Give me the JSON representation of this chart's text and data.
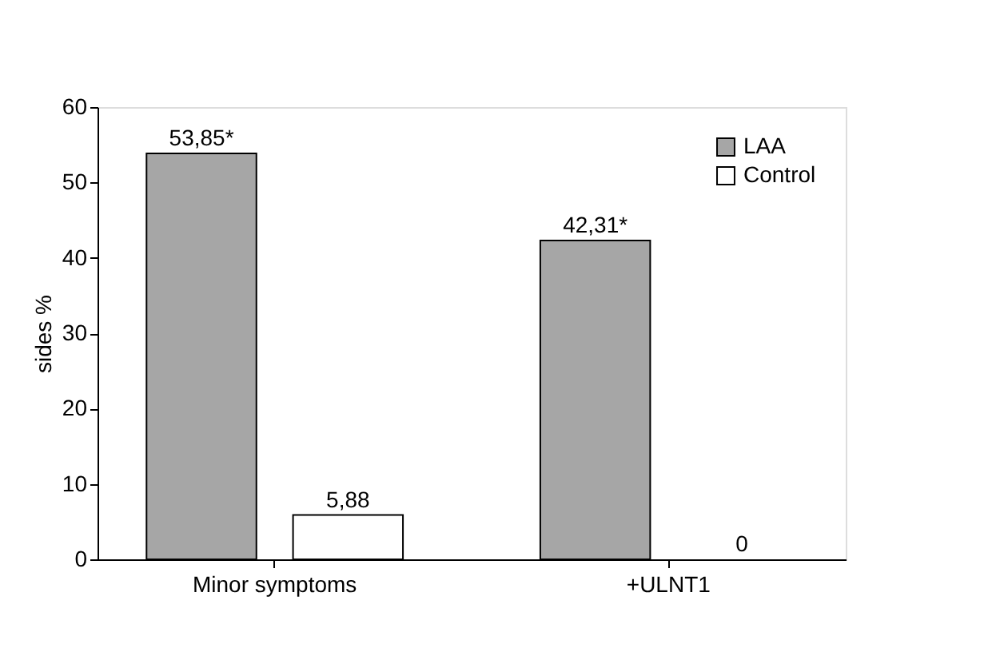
{
  "chart_data": {
    "type": "bar",
    "categories": [
      "Minor symptoms",
      "+ULNT1"
    ],
    "series": [
      {
        "name": "LAA",
        "color": "#a6a6a6",
        "values": [
          53.85,
          42.31
        ],
        "value_labels": [
          "53,85*",
          "42,31*"
        ]
      },
      {
        "name": "Control",
        "color": "#ffffff",
        "values": [
          5.88,
          0
        ],
        "value_labels": [
          "5,88",
          "0"
        ]
      }
    ],
    "ylabel": "sides %",
    "ylim": [
      0,
      60
    ],
    "yticks": [
      0,
      10,
      20,
      30,
      40,
      50,
      60
    ],
    "grid": false,
    "legend": "top right"
  }
}
